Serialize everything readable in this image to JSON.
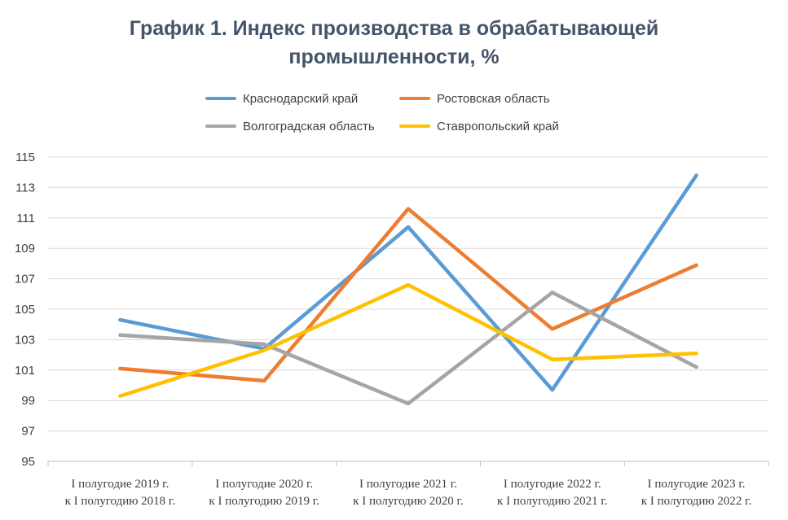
{
  "chart_data": {
    "type": "line",
    "title_lines": [
      "График 1. Индекс производства в обрабатывающей",
      "промышленности, %"
    ],
    "categories": [
      [
        "I полугодие 2019 г.",
        "к I полугодию 2018 г."
      ],
      [
        "I полугодие 2020 г.",
        "к I полугодию 2019 г."
      ],
      [
        "I полугодие 2021 г.",
        "к I полугодию 2020 г."
      ],
      [
        "I полугодие 2022 г.",
        "к I полугодию 2021 г."
      ],
      [
        "I полугодие 2023 г.",
        "к I полугодию 2022 г."
      ]
    ],
    "ylim": [
      95,
      115
    ],
    "yticks": [
      95,
      97,
      99,
      101,
      103,
      105,
      107,
      109,
      111,
      113,
      115
    ],
    "grid": true,
    "legend_position": "top",
    "series": [
      {
        "name": "Краснодарский край",
        "color": "#5b9bd5",
        "values": [
          104.3,
          102.4,
          110.4,
          99.7,
          113.8
        ]
      },
      {
        "name": "Ростовская область",
        "color": "#ed7d31",
        "values": [
          101.1,
          100.3,
          111.6,
          103.7,
          107.9
        ]
      },
      {
        "name": "Волгоградская область",
        "color": "#a5a5a5",
        "values": [
          103.3,
          102.7,
          98.8,
          106.1,
          101.2
        ]
      },
      {
        "name": "Ставропольский край",
        "color": "#ffc000",
        "values": [
          99.3,
          102.3,
          106.6,
          101.7,
          102.1
        ]
      }
    ]
  }
}
